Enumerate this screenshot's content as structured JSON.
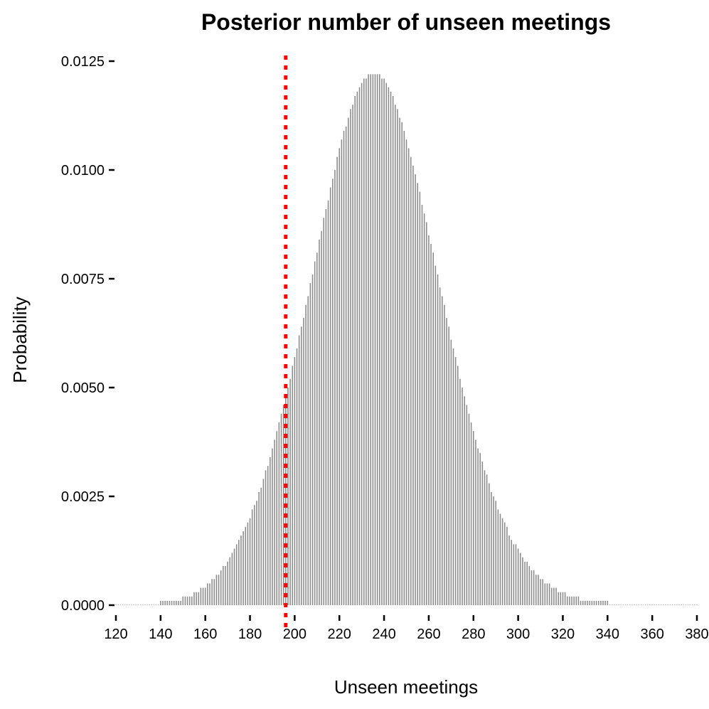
{
  "chart_data": {
    "type": "bar",
    "title": "Posterior number of unseen meetings",
    "xlabel": "Unseen meetings",
    "ylabel": "Probability",
    "xlim": [
      120,
      380
    ],
    "ylim": [
      0,
      0.0125
    ],
    "x_ticks": [
      "120",
      "140",
      "160",
      "180",
      "200",
      "220",
      "240",
      "260",
      "280",
      "300",
      "320",
      "340",
      "360",
      "380"
    ],
    "y_ticks": [
      "0.0000",
      "0.0025",
      "0.0050",
      "0.0075",
      "0.0100",
      "0.0125"
    ],
    "grid": false,
    "legend": "none",
    "distribution_summary": {
      "mode": 235,
      "peak_probability": 0.01225,
      "spread_sd": 32.5
    },
    "x": [
      120,
      121,
      122,
      123,
      124,
      125,
      126,
      127,
      128,
      129,
      130,
      131,
      132,
      133,
      134,
      135,
      136,
      137,
      138,
      139,
      140,
      141,
      142,
      143,
      144,
      145,
      146,
      147,
      148,
      149,
      150,
      151,
      152,
      153,
      154,
      155,
      156,
      157,
      158,
      159,
      160,
      161,
      162,
      163,
      164,
      165,
      166,
      167,
      168,
      169,
      170,
      171,
      172,
      173,
      174,
      175,
      176,
      177,
      178,
      179,
      180,
      181,
      182,
      183,
      184,
      185,
      186,
      187,
      188,
      189,
      190,
      191,
      192,
      193,
      194,
      195,
      196,
      197,
      198,
      199,
      200,
      201,
      202,
      203,
      204,
      205,
      206,
      207,
      208,
      209,
      210,
      211,
      212,
      213,
      214,
      215,
      216,
      217,
      218,
      219,
      220,
      221,
      222,
      223,
      224,
      225,
      226,
      227,
      228,
      229,
      230,
      231,
      232,
      233,
      234,
      235,
      236,
      237,
      238,
      239,
      240,
      241,
      242,
      243,
      244,
      245,
      246,
      247,
      248,
      249,
      250,
      251,
      252,
      253,
      254,
      255,
      256,
      257,
      258,
      259,
      260,
      261,
      262,
      263,
      264,
      265,
      266,
      267,
      268,
      269,
      270,
      271,
      272,
      273,
      274,
      275,
      276,
      277,
      278,
      279,
      280,
      281,
      282,
      283,
      284,
      285,
      286,
      287,
      288,
      289,
      290,
      291,
      292,
      293,
      294,
      295,
      296,
      297,
      298,
      299,
      300,
      301,
      302,
      303,
      304,
      305,
      306,
      307,
      308,
      309,
      310,
      311,
      312,
      313,
      314,
      315,
      316,
      317,
      318,
      319,
      320,
      321,
      322,
      323,
      324,
      325,
      326,
      327,
      328,
      329,
      330,
      331,
      332,
      333,
      334,
      335,
      336,
      337,
      338,
      339,
      340,
      341,
      342,
      343,
      344,
      345,
      346,
      347,
      348,
      349,
      350,
      351,
      352,
      353,
      354,
      355,
      356,
      357,
      358,
      359,
      360,
      361,
      362,
      363,
      364,
      365,
      366,
      367,
      368,
      369,
      370,
      371,
      372,
      373,
      374,
      375,
      376,
      377,
      378,
      379,
      380
    ],
    "values": [
      0.0,
      0.0,
      0.0,
      0.0,
      0.0,
      0.0,
      0.0,
      0.0,
      0.0,
      0.0,
      0.0,
      0.0,
      0.0,
      0.0,
      0.0,
      0.0,
      0.0,
      0.0,
      0.0,
      0.0,
      0.0001,
      0.0001,
      0.0001,
      0.0001,
      0.0001,
      0.0001,
      0.0001,
      0.0001,
      0.0001,
      0.0001,
      0.0002,
      0.0002,
      0.0002,
      0.0002,
      0.0002,
      0.0003,
      0.0003,
      0.0003,
      0.0004,
      0.0004,
      0.0004,
      0.0005,
      0.0005,
      0.0006,
      0.0006,
      0.0007,
      0.0007,
      0.0008,
      0.0009,
      0.0009,
      0.001,
      0.0011,
      0.0012,
      0.0013,
      0.0014,
      0.0015,
      0.0016,
      0.0017,
      0.0018,
      0.0019,
      0.002,
      0.0022,
      0.0023,
      0.0024,
      0.0026,
      0.0027,
      0.0029,
      0.0031,
      0.0032,
      0.0034,
      0.0036,
      0.0038,
      0.004,
      0.0042,
      0.0044,
      0.0046,
      0.0048,
      0.005,
      0.0052,
      0.0055,
      0.0057,
      0.0059,
      0.0062,
      0.0064,
      0.0066,
      0.0069,
      0.0071,
      0.0074,
      0.0076,
      0.0079,
      0.0081,
      0.0084,
      0.0086,
      0.0089,
      0.0091,
      0.0093,
      0.0096,
      0.0098,
      0.01,
      0.0103,
      0.0105,
      0.0107,
      0.0109,
      0.011,
      0.0112,
      0.0114,
      0.0115,
      0.0117,
      0.0118,
      0.0119,
      0.012,
      0.0121,
      0.0121,
      0.0122,
      0.0122,
      0.0122,
      0.0122,
      0.0122,
      0.0122,
      0.0121,
      0.0121,
      0.012,
      0.0119,
      0.0118,
      0.0117,
      0.0115,
      0.0114,
      0.0112,
      0.0111,
      0.0109,
      0.0107,
      0.0105,
      0.0103,
      0.0101,
      0.0099,
      0.0097,
      0.0095,
      0.0092,
      0.009,
      0.0088,
      0.0085,
      0.0083,
      0.0081,
      0.0078,
      0.0076,
      0.0073,
      0.0071,
      0.0069,
      0.0066,
      0.0064,
      0.0061,
      0.0059,
      0.0057,
      0.0055,
      0.0052,
      0.005,
      0.0048,
      0.0046,
      0.0044,
      0.0042,
      0.004,
      0.0038,
      0.0036,
      0.0035,
      0.0033,
      0.0031,
      0.003,
      0.0028,
      0.0026,
      0.0025,
      0.0024,
      0.0022,
      0.0021,
      0.002,
      0.0019,
      0.0018,
      0.0016,
      0.0015,
      0.0014,
      0.0014,
      0.0013,
      0.0012,
      0.0011,
      0.001,
      0.001,
      0.0009,
      0.0008,
      0.0008,
      0.0007,
      0.0007,
      0.0006,
      0.0006,
      0.0005,
      0.0005,
      0.0005,
      0.0004,
      0.0004,
      0.0004,
      0.0003,
      0.0003,
      0.0003,
      0.0003,
      0.0002,
      0.0002,
      0.0002,
      0.0002,
      0.0002,
      0.0002,
      0.0001,
      0.0001,
      0.0001,
      0.0001,
      0.0001,
      0.0001,
      0.0001,
      0.0001,
      0.0001,
      0.0001,
      0.0001,
      0.0001,
      0.0001,
      0.0,
      0.0,
      0.0,
      0.0,
      0.0,
      0.0,
      0.0,
      0.0,
      0.0,
      0.0,
      0.0,
      0.0,
      0.0,
      0.0,
      0.0,
      0.0,
      0.0,
      0.0,
      0.0,
      0.0,
      0.0,
      0.0,
      0.0,
      0.0,
      0.0,
      0.0,
      0.0,
      0.0,
      0.0,
      0.0,
      0.0,
      0.0,
      0.0,
      0.0,
      0.0,
      0.0,
      0.0,
      0.0,
      0.0,
      0.0
    ],
    "reference_line": {
      "x": 196,
      "style": "dotted",
      "color": "#ff0000"
    },
    "colors": {
      "bars": "#8c8c8c",
      "reference_line": "#ff0000",
      "axis": "#000000"
    }
  }
}
